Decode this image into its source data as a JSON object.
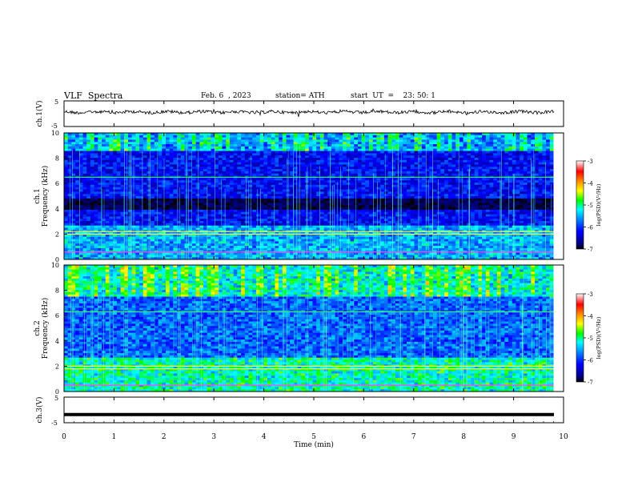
{
  "header": {
    "title": "VLF  Spectra",
    "date": "Feb. 6  , 2023",
    "station": "station= ATH",
    "start": "start  UT  =    23: 50: 1"
  },
  "chart_data": [
    {
      "type": "line",
      "panel": "ch1-waveform",
      "ylabel": "ch.1(V)",
      "ylim": [
        -5,
        5
      ],
      "yticks": [
        "5",
        "-5"
      ],
      "xlim": [
        0,
        10
      ],
      "series": [
        {
          "values": "noise around 0 V, amplitude about ±0.5 V"
        }
      ],
      "color": "#000000"
    },
    {
      "type": "heatmap",
      "panel": "ch1-spectrogram",
      "ylabel": "ch.1\nFrequency (kHz)",
      "ylabel_lines": [
        "ch.1",
        "Frequency  (kHz)"
      ],
      "ylim": [
        0,
        10
      ],
      "yticks": [
        "0",
        "2",
        "4",
        "6",
        "8",
        "10"
      ],
      "xlim": [
        0,
        9.8
      ],
      "colorbar": {
        "label": "log(PSD)(V²/Hz)",
        "range": [
          -7,
          -3
        ],
        "ticks": [
          "-3",
          "-4",
          "-5",
          "-6",
          "-7"
        ]
      },
      "features": {
        "background_log_psd": -6.2,
        "dark_band_khz": [
          3.9,
          4.8
        ],
        "strong_line_khz": [
          6.5,
          2.2,
          2.0,
          0.6
        ],
        "noise_high_freq_khz": [
          8.5,
          10
        ]
      }
    },
    {
      "type": "heatmap",
      "panel": "ch2-spectrogram",
      "ylabel_lines": [
        "ch.2",
        "Frequency  (kHz)"
      ],
      "ylim": [
        0,
        10
      ],
      "yticks": [
        "0",
        "2",
        "4",
        "6",
        "8",
        "10"
      ],
      "xlim": [
        0,
        9.8
      ],
      "colorbar": {
        "label": "log(PSD)(V²/Hz)",
        "range": [
          -7,
          -3
        ],
        "ticks": [
          "-3",
          "-4",
          "-5",
          "-6",
          "-7"
        ]
      },
      "features": {
        "background_log_psd": -5.8,
        "strong_line_khz": [
          6.3,
          2.0,
          1.8,
          0.5
        ],
        "noise_high_freq_khz": [
          7.5,
          10
        ]
      }
    },
    {
      "type": "line",
      "panel": "ch3-waveform",
      "ylabel": "ch.3(V)",
      "ylim": [
        -5,
        5
      ],
      "yticks": [
        "5",
        "-5"
      ],
      "xlim": [
        0,
        10
      ],
      "xlabel": "Time  (min)",
      "xticks": [
        "0",
        "1",
        "2",
        "3",
        "4",
        "5",
        "6",
        "7",
        "8",
        "9",
        "10"
      ],
      "series": [
        {
          "values": "constant about -1.8 V"
        }
      ],
      "color": "#000000"
    }
  ]
}
